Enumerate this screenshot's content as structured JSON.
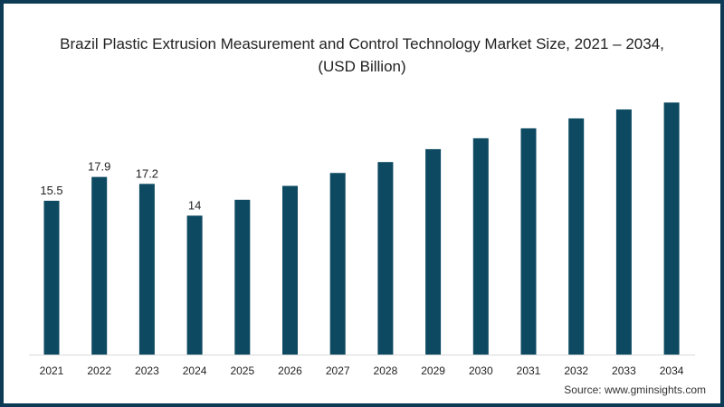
{
  "chart_data": {
    "type": "bar",
    "title": "Brazil Plastic Extrusion Measurement and Control Technology Market Size, 2021 – 2034, (USD Billion)",
    "xlabel": "",
    "ylabel": "USD Billion",
    "ylim": [
      0,
      26
    ],
    "grid": false,
    "categories": [
      "2021",
      "2022",
      "2023",
      "2024",
      "2025",
      "2026",
      "2027",
      "2028",
      "2029",
      "2030",
      "2031",
      "2032",
      "2033",
      "2034"
    ],
    "values": [
      15.5,
      17.9,
      17.2,
      14,
      15.6,
      17.0,
      18.3,
      19.4,
      20.7,
      21.8,
      22.8,
      23.8,
      24.7,
      25.4
    ],
    "data_labels": [
      "15.5",
      "17.9",
      "17.2",
      "14",
      null,
      null,
      null,
      null,
      null,
      null,
      null,
      null,
      null,
      null
    ],
    "bar_color": "#0d4a62",
    "source": "Source: www.gminsights.com"
  }
}
